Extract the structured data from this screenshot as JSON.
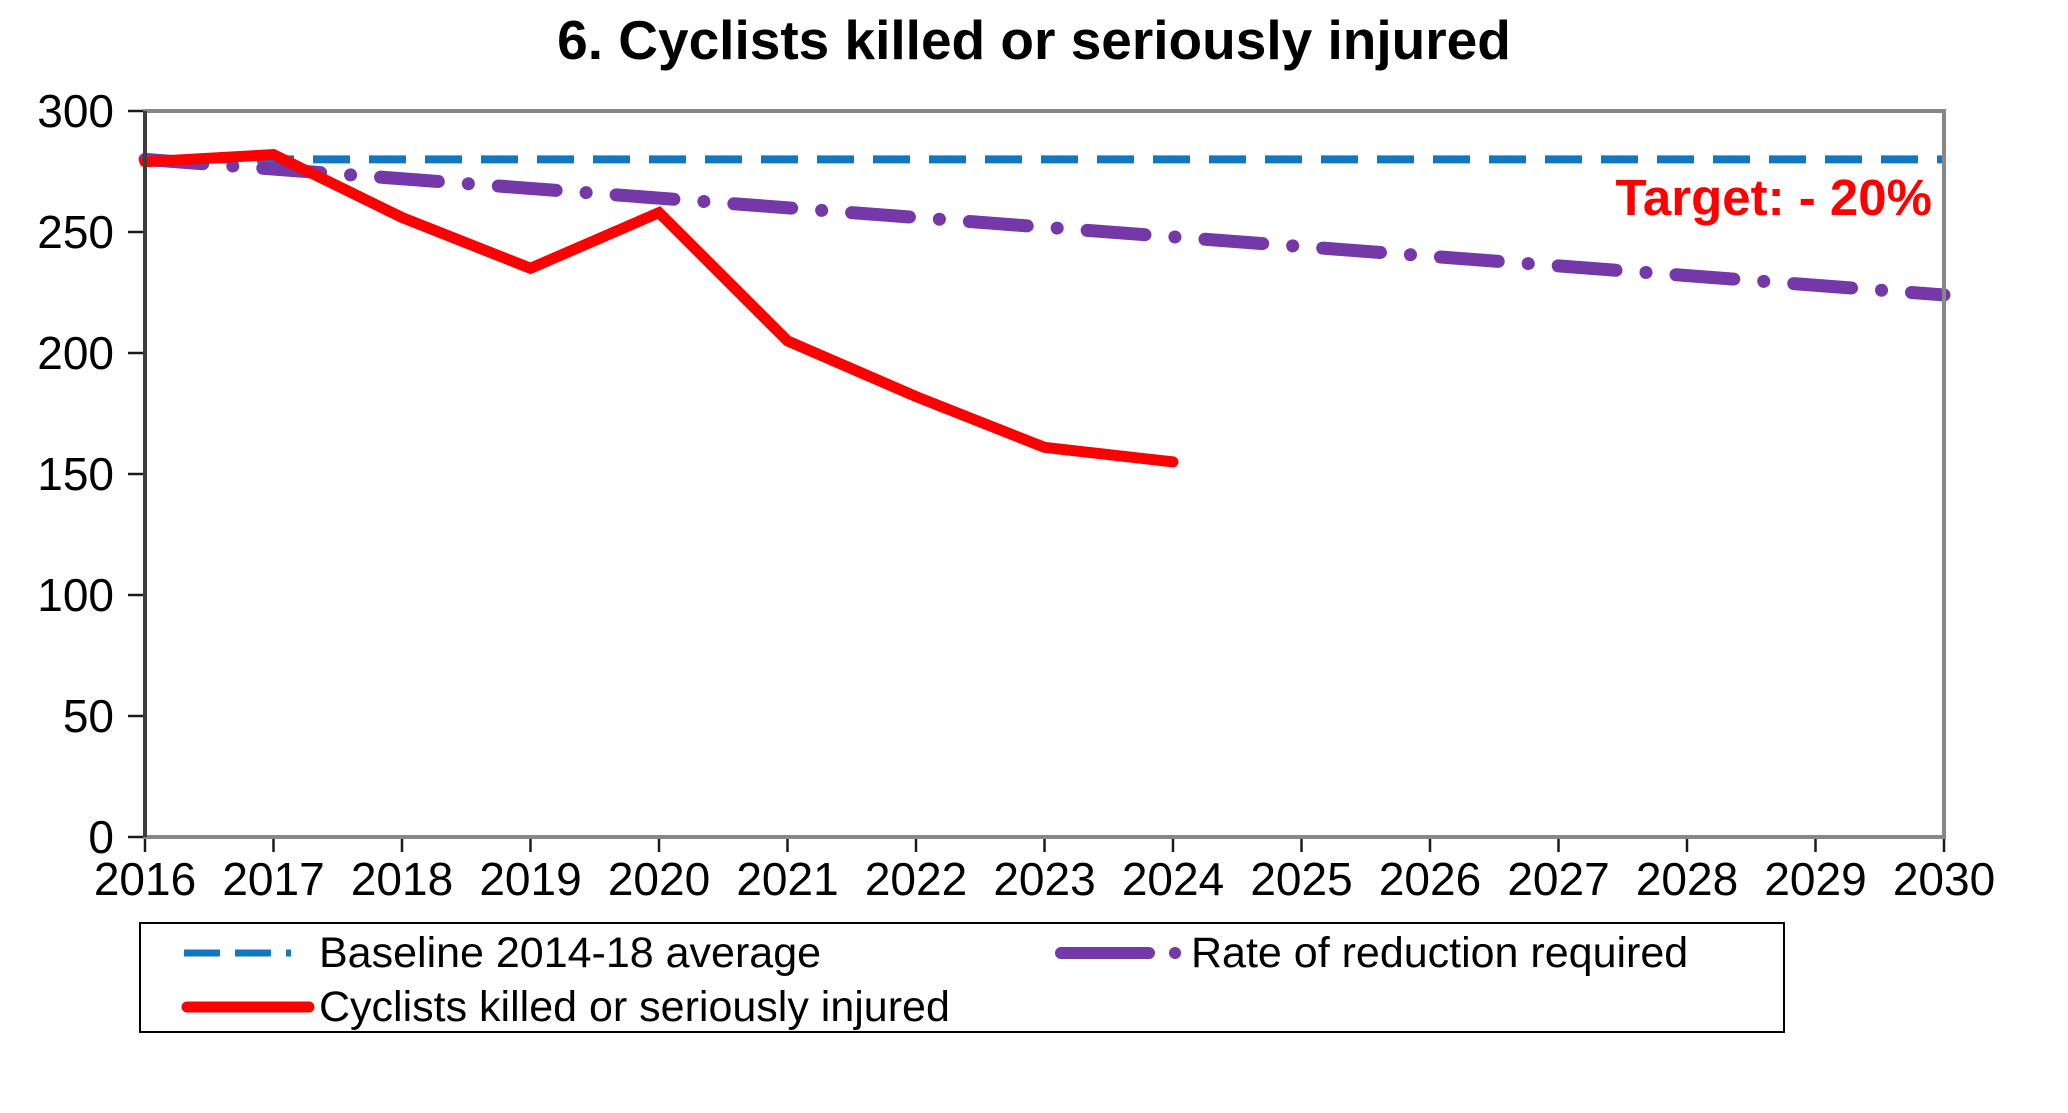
{
  "chart_data": {
    "type": "line",
    "title": "6. Cyclists killed or seriously injured",
    "x_axis": {
      "categories": [
        "2016",
        "2017",
        "2018",
        "2019",
        "2020",
        "2021",
        "2022",
        "2023",
        "2024",
        "2025",
        "2026",
        "2027",
        "2028",
        "2029",
        "2030"
      ]
    },
    "y_axis": {
      "min": 0,
      "max": 300,
      "tick_step": 50
    },
    "grid": "off",
    "legend_position": "bottom",
    "annotations": {
      "target_label": "Target: - 20%",
      "target_color": "#fe0000"
    },
    "series": [
      {
        "id": "baseline",
        "name": "Baseline 2014-18 average",
        "style": "dashed",
        "color": "#1277c2",
        "x": [
          2016,
          2030
        ],
        "values": [
          280,
          280
        ]
      },
      {
        "id": "required",
        "name": "Rate of reduction required",
        "style": "dash-dot",
        "color": "#7438a8",
        "x": [
          2016,
          2030
        ],
        "values": [
          280,
          224
        ]
      },
      {
        "id": "actual",
        "name": "Cyclists killed or seriously injured",
        "style": "solid",
        "color": "#fe0000",
        "x": [
          2016,
          2017,
          2018,
          2019,
          2020,
          2021,
          2022,
          2023,
          2024
        ],
        "values": [
          279,
          282,
          256,
          235,
          258,
          205,
          182,
          161,
          155
        ]
      }
    ]
  },
  "colors": {
    "plot_border": "#878787",
    "y_axis_line": "#3d3d3d",
    "tick": "#1a1a1a",
    "text": "#000000"
  }
}
